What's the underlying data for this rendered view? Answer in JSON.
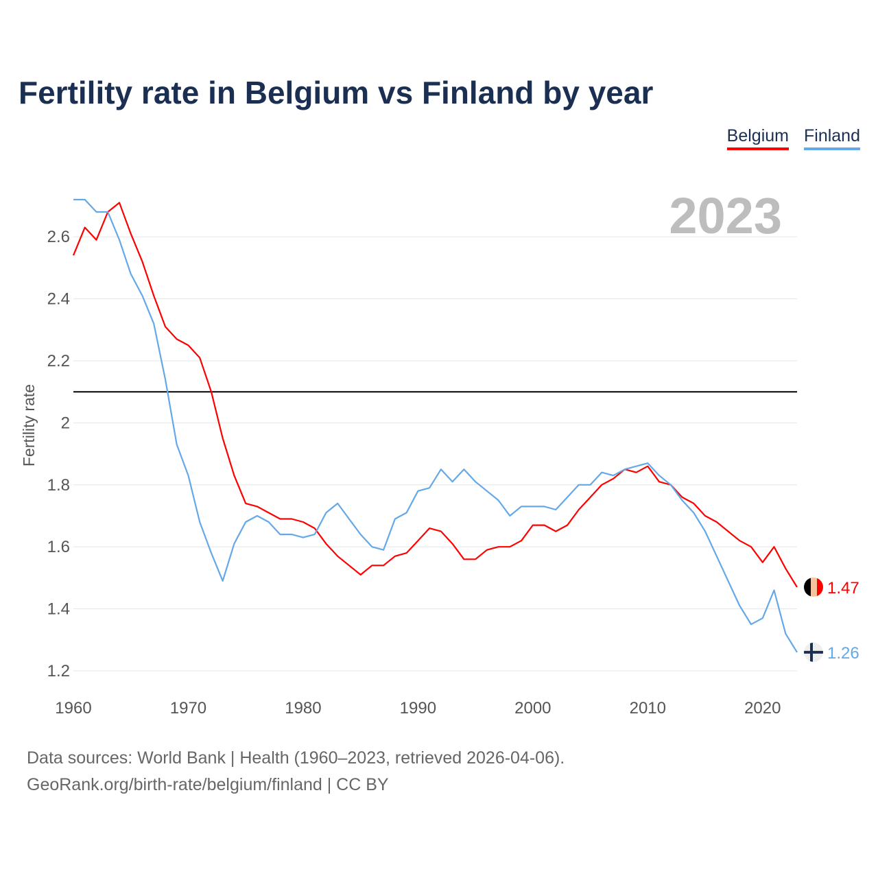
{
  "title": "Fertility rate in Belgium vs Finland by year",
  "footer": {
    "line1": "Data sources: World Bank | Health (1960–2023, retrieved 2026-04-06).",
    "line2": "GeoRank.org/birth-rate/belgium/finland | CC BY"
  },
  "chart_data": {
    "type": "line",
    "title": "Fertility rate in Belgium vs Finland by year",
    "xlabel": "",
    "ylabel": "Fertility rate",
    "year_label": "2023",
    "xlim": [
      1960,
      2023
    ],
    "ylim": [
      1.2,
      2.72
    ],
    "xticks": [
      "1960",
      "1970",
      "1980",
      "1990",
      "2000",
      "2010",
      "2020"
    ],
    "yticks": [
      "1.2",
      "1.4",
      "1.6",
      "1.8",
      "2",
      "2.2",
      "2.4",
      "2.6"
    ],
    "reference_line": 2.1,
    "legend_position": "top-right",
    "x": [
      1960,
      1961,
      1962,
      1963,
      1964,
      1965,
      1966,
      1967,
      1968,
      1969,
      1970,
      1971,
      1972,
      1973,
      1974,
      1975,
      1976,
      1977,
      1978,
      1979,
      1980,
      1981,
      1982,
      1983,
      1984,
      1985,
      1986,
      1987,
      1988,
      1989,
      1990,
      1991,
      1992,
      1993,
      1994,
      1995,
      1996,
      1997,
      1998,
      1999,
      2000,
      2001,
      2002,
      2003,
      2004,
      2005,
      2006,
      2007,
      2008,
      2009,
      2010,
      2011,
      2012,
      2013,
      2014,
      2015,
      2016,
      2017,
      2018,
      2019,
      2020,
      2021,
      2022,
      2023
    ],
    "series": [
      {
        "name": "Belgium",
        "color": "#ff0000",
        "end_label": "1.47",
        "values": [
          2.54,
          2.63,
          2.59,
          2.68,
          2.71,
          2.61,
          2.52,
          2.41,
          2.31,
          2.27,
          2.25,
          2.21,
          2.1,
          1.95,
          1.83,
          1.74,
          1.73,
          1.71,
          1.69,
          1.69,
          1.68,
          1.66,
          1.61,
          1.57,
          1.54,
          1.51,
          1.54,
          1.54,
          1.57,
          1.58,
          1.62,
          1.66,
          1.65,
          1.61,
          1.56,
          1.56,
          1.59,
          1.6,
          1.6,
          1.62,
          1.67,
          1.67,
          1.65,
          1.67,
          1.72,
          1.76,
          1.8,
          1.82,
          1.85,
          1.84,
          1.86,
          1.81,
          1.8,
          1.76,
          1.74,
          1.7,
          1.68,
          1.65,
          1.62,
          1.6,
          1.55,
          1.6,
          1.53,
          1.47
        ]
      },
      {
        "name": "Finland",
        "color": "#63a8e8",
        "end_label": "1.26",
        "values": [
          2.72,
          2.72,
          2.68,
          2.68,
          2.59,
          2.48,
          2.41,
          2.32,
          2.14,
          1.93,
          1.83,
          1.68,
          1.58,
          1.49,
          1.61,
          1.68,
          1.7,
          1.68,
          1.64,
          1.64,
          1.63,
          1.64,
          1.71,
          1.74,
          1.69,
          1.64,
          1.6,
          1.59,
          1.69,
          1.71,
          1.78,
          1.79,
          1.85,
          1.81,
          1.85,
          1.81,
          1.78,
          1.75,
          1.7,
          1.73,
          1.73,
          1.73,
          1.72,
          1.76,
          1.8,
          1.8,
          1.84,
          1.83,
          1.85,
          1.86,
          1.87,
          1.83,
          1.8,
          1.75,
          1.71,
          1.65,
          1.57,
          1.49,
          1.41,
          1.35,
          1.37,
          1.46,
          1.32,
          1.26
        ]
      }
    ]
  }
}
